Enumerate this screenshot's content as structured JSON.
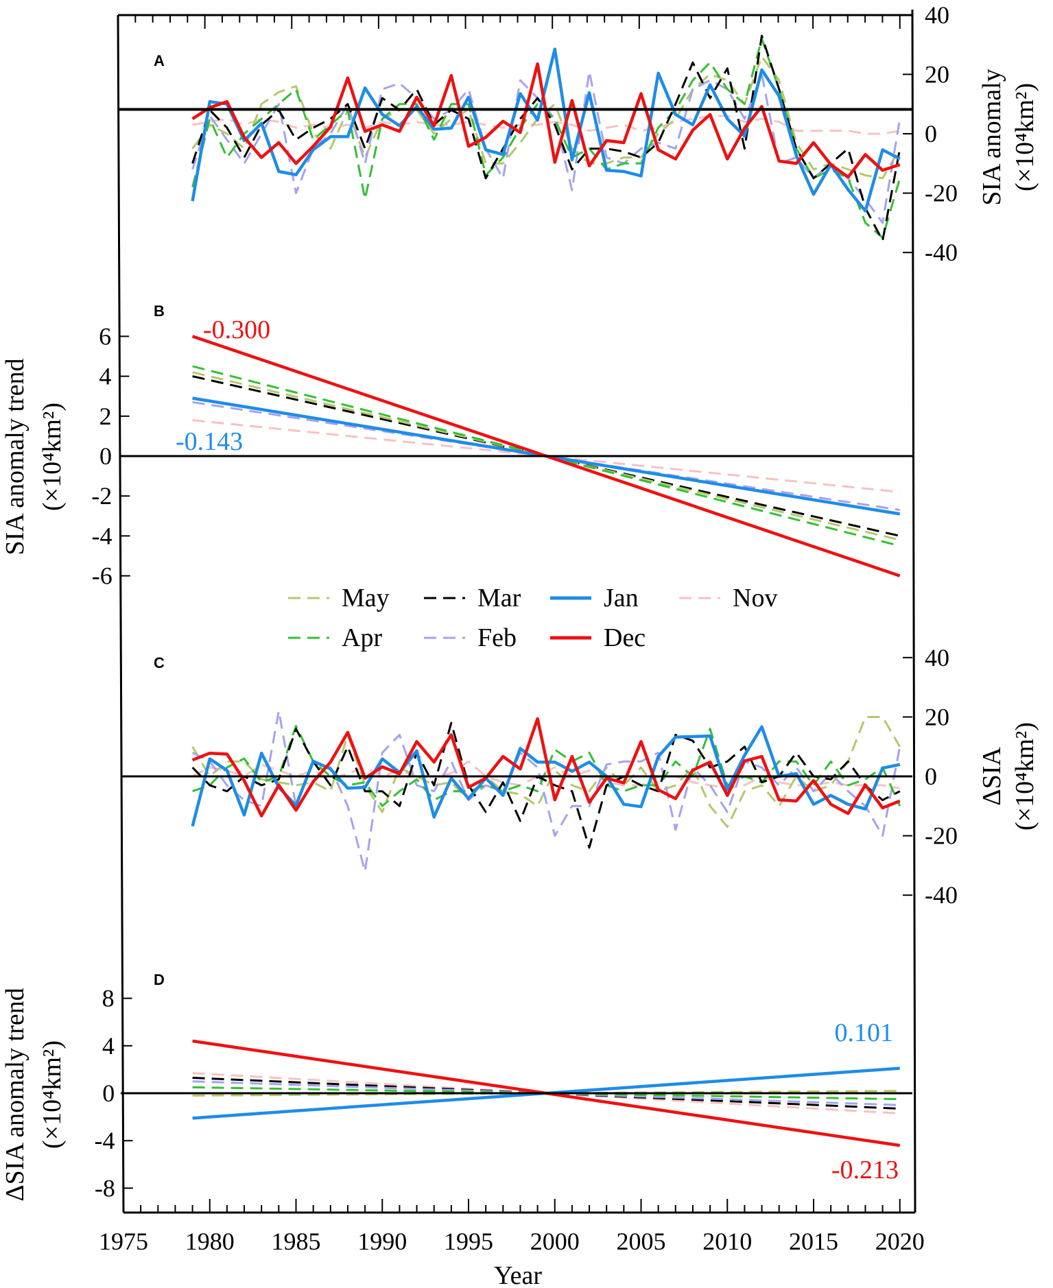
{
  "chart_data": {
    "type": "line",
    "x_start_year": 1979,
    "x_end_year": 2020,
    "xlabel": "Year",
    "xlim": [
      1975,
      2020
    ],
    "x_ticks": [
      "1975",
      "1980",
      "1985",
      "1990",
      "1995",
      "2000",
      "2005",
      "2010",
      "2015",
      "2020"
    ],
    "colors": {
      "May": "#b4c86a",
      "Apr": "#33c033",
      "Mar": "#000000",
      "Feb": "#a3a3f0",
      "Jan": "#1e8ce8",
      "Dec": "#ee1111",
      "Nov": "#f6c2c2"
    },
    "legend": {
      "placement": "between panels B and C",
      "entries": [
        {
          "name": "May",
          "style": "dashed"
        },
        {
          "name": "Mar",
          "style": "dashed"
        },
        {
          "name": "Jan",
          "style": "solid"
        },
        {
          "name": "Nov",
          "style": "dashed"
        },
        {
          "name": "Apr",
          "style": "dashed"
        },
        {
          "name": "Feb",
          "style": "dashed"
        },
        {
          "name": "Dec",
          "style": "solid"
        }
      ]
    },
    "panels": [
      {
        "id": "A",
        "label": "A",
        "ylabel": "SIA anomaly",
        "yunit": "(×10⁴km²)",
        "axis_side": "right",
        "ylim": [
          -40,
          40
        ],
        "y_ticks": [
          "40",
          "20",
          "0",
          "-20",
          "-40"
        ],
        "ref_line": 8.2,
        "series": [
          {
            "name": "Nov",
            "values": [
              3,
              4,
              5,
              3,
              5,
              4,
              2,
              3,
              2,
              3,
              2,
              4,
              3,
              4,
              3,
              3,
              4,
              3,
              2,
              3,
              3,
              4,
              3,
              1,
              2,
              3,
              1,
              2,
              4,
              5,
              6,
              6,
              4,
              5,
              4,
              1,
              1,
              1,
              1,
              0,
              0,
              1
            ]
          },
          {
            "name": "May",
            "values": [
              -5,
              3,
              0,
              -5,
              10,
              14,
              16,
              0,
              -5,
              8,
              -8,
              5,
              8,
              8,
              0,
              5,
              8,
              -10,
              -10,
              -3,
              5,
              10,
              -5,
              -10,
              -10,
              -8,
              -8,
              0,
              5,
              15,
              20,
              18,
              10,
              26,
              18,
              -3,
              -12,
              -10,
              -12,
              -14,
              -15,
              -5
            ]
          },
          {
            "name": "Feb",
            "values": [
              -12,
              6,
              -2,
              -10,
              0,
              10,
              -20,
              -5,
              0,
              10,
              -10,
              15,
              17,
              12,
              5,
              8,
              15,
              -5,
              -15,
              18,
              12,
              5,
              -19,
              21,
              -8,
              -10,
              -5,
              -3,
              -5,
              15,
              18,
              15,
              5,
              20,
              -10,
              -8,
              -15,
              -10,
              -15,
              -22,
              -30,
              5
            ]
          },
          {
            "name": "Apr",
            "values": [
              -18,
              5,
              -8,
              0,
              5,
              10,
              15,
              -2,
              3,
              8,
              -22,
              5,
              10,
              10,
              -2,
              10,
              10,
              -14,
              -8,
              2,
              10,
              5,
              -8,
              -5,
              -12,
              -10,
              -10,
              2,
              8,
              18,
              24,
              15,
              10,
              32,
              15,
              -5,
              -15,
              -12,
              -15,
              -30,
              -35,
              -15
            ]
          },
          {
            "name": "Mar",
            "values": [
              -10,
              8,
              2,
              -8,
              3,
              8,
              -2,
              2,
              5,
              10,
              -5,
              12,
              8,
              15,
              3,
              8,
              5,
              -15,
              -5,
              5,
              12,
              3,
              -12,
              -5,
              -5,
              -6,
              -8,
              -3,
              10,
              24,
              12,
              22,
              -5,
              33,
              15,
              -5,
              -15,
              -10,
              -5,
              -25,
              -36,
              -5
            ]
          },
          {
            "name": "Jan",
            "values": [
              -22.7,
              10.8,
              10,
              -2.3,
              3.5,
              -12.7,
              -13.8,
              -5.4,
              -1,
              -1,
              15.4,
              6.5,
              2.7,
              9.2,
              1.5,
              1.9,
              12.3,
              -5.4,
              -7,
              13.5,
              4.6,
              28.5,
              -8.8,
              13.8,
              -12.3,
              -12.7,
              -14.2,
              20.4,
              6.5,
              3,
              16.5,
              5,
              -0.8,
              21.5,
              12.7,
              -7.3,
              -20.4,
              -10.4,
              -18.8,
              -26,
              -5.4,
              -8.5
            ]
          },
          {
            "name": "Dec",
            "values": [
              5,
              8.8,
              10.8,
              -1.2,
              -8,
              -3,
              -10,
              -4.2,
              2.3,
              18.8,
              0.8,
              3,
              0.8,
              12.3,
              2.7,
              19.6,
              -4.2,
              -1.2,
              4.2,
              0.4,
              23.5,
              -9.6,
              11.2,
              -10.8,
              -2.3,
              -3,
              13.5,
              -5.4,
              -8.5,
              1.2,
              6.5,
              -8.5,
              1.9,
              9.2,
              -9.2,
              -10,
              -3,
              -10.4,
              -14.6,
              -7,
              -12.3,
              -10.4
            ]
          }
        ]
      },
      {
        "id": "B",
        "label": "B",
        "ylabel": "SIA anomaly trend",
        "yunit": "(×10⁴km²)",
        "axis_side": "left",
        "ylim": [
          -6,
          6
        ],
        "y_ticks": [
          "6",
          "4",
          "2",
          "0",
          "-2",
          "-4",
          "-6"
        ],
        "ref_line": 0,
        "series": [
          {
            "name": "Nov",
            "start": 1.8,
            "end": -1.8
          },
          {
            "name": "Feb",
            "start": 2.7,
            "end": -2.7
          },
          {
            "name": "Mar",
            "start": 4.0,
            "end": -4.0
          },
          {
            "name": "May",
            "start": 4.2,
            "end": -4.2
          },
          {
            "name": "Apr",
            "start": 4.5,
            "end": -4.5
          },
          {
            "name": "Jan",
            "start": 2.9,
            "end": -2.9
          },
          {
            "name": "Dec",
            "start": 6.0,
            "end": -6.0
          }
        ],
        "annotations": [
          {
            "text": "-0.300",
            "series": "Dec"
          },
          {
            "text": "-0.143",
            "series": "Jan"
          }
        ]
      },
      {
        "id": "C",
        "label": "C",
        "ylabel": "ΔSIA",
        "yunit": "(×10⁴km²)",
        "axis_side": "right",
        "ylim": [
          -40,
          40
        ],
        "y_ticks": [
          "40",
          "20",
          "0",
          "-20",
          "-40"
        ],
        "ref_line": 0,
        "series": [
          {
            "name": "Nov",
            "values": [
              0,
              3,
              2,
              0,
              4,
              2,
              0,
              2,
              -1,
              1,
              3,
              0,
              2,
              0,
              0,
              1,
              5,
              0,
              -2,
              -3,
              0,
              3,
              0,
              2,
              -2,
              -3,
              -3,
              0,
              0,
              -2,
              -3,
              -4,
              -3,
              0,
              -2,
              -3,
              -3,
              -2,
              -3,
              -3,
              -3,
              -4
            ]
          },
          {
            "name": "May",
            "values": [
              10,
              0,
              5,
              5,
              -1,
              -2,
              -3,
              -2,
              -5,
              14,
              -3,
              -12,
              3,
              0,
              -3,
              -2,
              -8,
              0,
              -5,
              -6,
              -10,
              2,
              -3,
              -5,
              3,
              -3,
              3,
              -5,
              -3,
              3,
              -10,
              -17,
              -5,
              -3,
              -10,
              0,
              -5,
              -3,
              5,
              20,
              20,
              10
            ]
          },
          {
            "name": "Feb",
            "values": [
              8,
              5,
              -3,
              -8,
              -10,
              22,
              -10,
              5,
              3,
              -10,
              -32,
              8,
              14,
              -3,
              -5,
              5,
              -8,
              -3,
              -5,
              8,
              3,
              -20,
              -10,
              -10,
              4,
              5,
              5,
              8,
              -18,
              3,
              -3,
              -12,
              5,
              3,
              -3,
              3,
              -5,
              1,
              -5,
              -10,
              -20,
              10
            ]
          },
          {
            "name": "Apr",
            "values": [
              -5,
              -3,
              3,
              6,
              -2,
              0,
              17,
              5,
              0,
              -3,
              -2,
              -10,
              -5,
              -1,
              -8,
              -5,
              -5,
              -3,
              -5,
              -3,
              -5,
              9,
              5,
              8,
              -3,
              -5,
              -3,
              -3,
              5,
              0,
              16,
              -3,
              0,
              -2,
              5,
              5,
              -3,
              5,
              -3,
              -1,
              3,
              -10
            ]
          },
          {
            "name": "Mar",
            "values": [
              3,
              -3,
              -5,
              0,
              -3,
              -1,
              16,
              5,
              -3,
              10,
              -5,
              -5,
              -10,
              8,
              -3,
              18,
              -3,
              -12,
              -2,
              -15,
              0,
              -3,
              -5,
              -24,
              -3,
              0,
              -3,
              -5,
              14,
              12,
              3,
              5,
              10,
              -2,
              0,
              8,
              0,
              -1,
              5,
              -3,
              -8,
              -5
            ]
          },
          {
            "name": "Jan",
            "values": [
              -16.8,
              5.9,
              2,
              -13,
              7.8,
              -3.7,
              -9.8,
              5.1,
              2.5,
              -4,
              -3.7,
              5.9,
              1.3,
              8.6,
              -13.7,
              -0.6,
              -7.5,
              -0.6,
              -6.4,
              9.4,
              4.8,
              4.8,
              1.7,
              4.8,
              0,
              -9.4,
              -10.2,
              6.7,
              13.2,
              13.4,
              13.6,
              -4.5,
              7.1,
              16.7,
              0,
              0.9,
              -9.4,
              -6.4,
              -9.4,
              -11,
              2.8,
              4
            ]
          },
          {
            "name": "Dec",
            "values": [
              5.5,
              7.8,
              7.5,
              -1.4,
              -13.3,
              -2.9,
              -11.4,
              -1.8,
              4.8,
              14.8,
              -0.6,
              3.2,
              0.9,
              11.7,
              4.8,
              14,
              -3.7,
              -0.6,
              6.7,
              2.5,
              19.4,
              -7.9,
              6.7,
              -8.7,
              -0.6,
              -2.2,
              11.7,
              -4.5,
              -7.5,
              2.1,
              4.8,
              -6.4,
              5.2,
              6.7,
              -7.9,
              -8.3,
              -1.4,
              -9.4,
              -12.5,
              -2.9,
              -10.6,
              -8.3
            ]
          }
        ]
      },
      {
        "id": "D",
        "label": "D",
        "ylabel": "ΔSIA anomaly trend",
        "yunit": "(×10⁴km²)",
        "axis_side": "left",
        "ylim": [
          -8,
          8
        ],
        "y_ticks": [
          "8",
          "4",
          "0",
          "-4",
          "-8"
        ],
        "ref_line": 0,
        "series": [
          {
            "name": "Nov",
            "start": 1.7,
            "end": -1.7
          },
          {
            "name": "Mar",
            "start": 1.3,
            "end": -1.3
          },
          {
            "name": "Feb",
            "start": 1.0,
            "end": -1.0
          },
          {
            "name": "Apr",
            "start": 0.5,
            "end": -0.5
          },
          {
            "name": "May",
            "start": -0.2,
            "end": 0.2
          },
          {
            "name": "Jan",
            "start": -2.1,
            "end": 2.1
          },
          {
            "name": "Dec",
            "start": 4.4,
            "end": -4.4
          }
        ],
        "annotations": [
          {
            "text": "0.101",
            "series": "Jan"
          },
          {
            "text": "-0.213",
            "series": "Dec"
          }
        ]
      }
    ]
  }
}
